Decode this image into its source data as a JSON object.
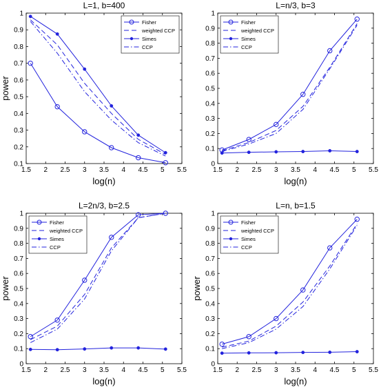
{
  "chart_data": [
    {
      "type": "line",
      "title": "L=1, b=400",
      "xlabel": "log(n)",
      "ylabel": "power",
      "xlim": [
        1.5,
        5.5
      ],
      "ylim": [
        0.1,
        1
      ],
      "xticks": [
        "1.5",
        "2",
        "2.5",
        "3",
        "3.5",
        "4",
        "4.5",
        "5",
        "5.5"
      ],
      "yticks": [
        "0.1",
        "0.2",
        "0.3",
        "0.4",
        "0.5",
        "0.6",
        "0.7",
        "0.8",
        "0.9",
        "1"
      ],
      "grid": false,
      "legend_position": "top-right",
      "x": [
        1.61,
        2.3,
        3.0,
        3.69,
        4.38,
        5.08
      ],
      "series": [
        {
          "name": "Fisher",
          "style": "solid-circle",
          "values": [
            0.7,
            0.44,
            0.29,
            0.195,
            0.135,
            0.105
          ]
        },
        {
          "name": "weighted CCP",
          "style": "dashed",
          "values": [
            0.96,
            0.81,
            0.58,
            0.4,
            0.245,
            0.155
          ]
        },
        {
          "name": "Simes",
          "style": "solid-dot",
          "values": [
            0.98,
            0.875,
            0.665,
            0.445,
            0.27,
            0.165
          ]
        },
        {
          "name": "CCP",
          "style": "dashdot",
          "values": [
            0.95,
            0.76,
            0.53,
            0.36,
            0.225,
            0.145
          ]
        }
      ]
    },
    {
      "type": "line",
      "title": "L=n/3, b=3",
      "xlabel": "log(n)",
      "ylabel": "",
      "xlim": [
        1.5,
        5.5
      ],
      "ylim": [
        0,
        1
      ],
      "xticks": [
        "1.5",
        "2",
        "2.5",
        "3",
        "3.5",
        "4",
        "4.5",
        "5",
        "5.5"
      ],
      "yticks": [
        "0",
        "0.1",
        "0.2",
        "0.3",
        "0.4",
        "0.5",
        "0.6",
        "0.7",
        "0.8",
        "0.9",
        "1"
      ],
      "grid": false,
      "legend_position": "top-left",
      "x": [
        1.61,
        2.3,
        3.0,
        3.69,
        4.38,
        5.08
      ],
      "series": [
        {
          "name": "Fisher",
          "style": "solid-circle",
          "values": [
            0.09,
            0.16,
            0.26,
            0.46,
            0.75,
            0.96
          ]
        },
        {
          "name": "weighted CCP",
          "style": "dashed",
          "values": [
            0.085,
            0.14,
            0.22,
            0.38,
            0.64,
            0.93
          ]
        },
        {
          "name": "Simes",
          "style": "solid-dot",
          "values": [
            0.07,
            0.075,
            0.078,
            0.08,
            0.085,
            0.08
          ]
        },
        {
          "name": "CCP",
          "style": "dashdot",
          "values": [
            0.08,
            0.13,
            0.2,
            0.36,
            0.63,
            0.92
          ]
        }
      ]
    },
    {
      "type": "line",
      "title": "L=2n/3, b=2.5",
      "xlabel": "log(n)",
      "ylabel": "power",
      "xlim": [
        1.5,
        5.5
      ],
      "ylim": [
        0,
        1
      ],
      "xticks": [
        "1.5",
        "2",
        "2.5",
        "3",
        "3.5",
        "4",
        "4.5",
        "5",
        "5.5"
      ],
      "yticks": [
        "0",
        "0.1",
        "0.2",
        "0.3",
        "0.4",
        "0.5",
        "0.6",
        "0.7",
        "0.8",
        "0.9",
        "1"
      ],
      "grid": false,
      "legend_position": "top-left",
      "x": [
        1.61,
        2.3,
        3.0,
        3.69,
        4.38,
        5.08
      ],
      "series": [
        {
          "name": "Fisher",
          "style": "solid-circle",
          "values": [
            0.18,
            0.29,
            0.555,
            0.84,
            0.99,
            1.0
          ]
        },
        {
          "name": "weighted CCP",
          "style": "dashed",
          "values": [
            0.16,
            0.25,
            0.46,
            0.77,
            0.97,
            1.0
          ]
        },
        {
          "name": "Simes",
          "style": "solid-dot",
          "values": [
            0.095,
            0.093,
            0.098,
            0.105,
            0.105,
            0.097
          ]
        },
        {
          "name": "CCP",
          "style": "dashdot",
          "values": [
            0.14,
            0.23,
            0.43,
            0.75,
            0.97,
            1.0
          ]
        }
      ]
    },
    {
      "type": "line",
      "title": "L=n, b=1.5",
      "xlabel": "log(n)",
      "ylabel": "power",
      "xlim": [
        1.5,
        5.5
      ],
      "ylim": [
        0,
        1
      ],
      "xticks": [
        "1.5",
        "2",
        "2.5",
        "3",
        "3.5",
        "4",
        "4.5",
        "5",
        "5.5"
      ],
      "yticks": [
        "0",
        "0.1",
        "0.2",
        "0.3",
        "0.4",
        "0.5",
        "0.6",
        "0.7",
        "0.8",
        "0.9",
        "1"
      ],
      "grid": false,
      "legend_position": "top-left",
      "x": [
        1.61,
        2.3,
        3.0,
        3.69,
        4.38,
        5.08
      ],
      "series": [
        {
          "name": "Fisher",
          "style": "solid-circle",
          "values": [
            0.13,
            0.18,
            0.3,
            0.49,
            0.77,
            0.96
          ]
        },
        {
          "name": "weighted CCP",
          "style": "dashed",
          "values": [
            0.11,
            0.15,
            0.25,
            0.41,
            0.65,
            0.93
          ]
        },
        {
          "name": "Simes",
          "style": "solid-dot",
          "values": [
            0.07,
            0.072,
            0.073,
            0.075,
            0.076,
            0.08
          ]
        },
        {
          "name": "CCP",
          "style": "dashdot",
          "values": [
            0.1,
            0.14,
            0.23,
            0.38,
            0.63,
            0.92
          ]
        }
      ]
    }
  ],
  "colors": {
    "series": "#2222dd",
    "axis": "#000000",
    "background": "#ffffff"
  }
}
